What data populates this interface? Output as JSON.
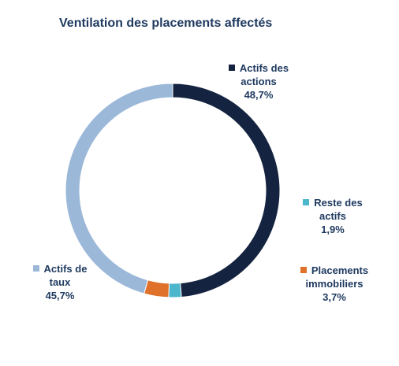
{
  "chart_data": {
    "type": "pie",
    "title": "Ventilation des placements affectés",
    "categories": [
      "Actifs des actions",
      "Reste des actifs",
      "Placements immobiliers",
      "Actifs de taux"
    ],
    "values": [
      48.7,
      1.9,
      3.7,
      45.7
    ],
    "value_labels": [
      "48,7%",
      "1,9%",
      "3,7%",
      "45,7%"
    ],
    "colors": [
      "#14233f",
      "#4bb6cc",
      "#e0712a",
      "#9bb8d9"
    ],
    "donut": true,
    "legend": "labels-around-ring"
  },
  "labels": [
    {
      "line1": "Actifs des",
      "line2": "actions",
      "pct": "48,7%"
    },
    {
      "line1": "Reste des",
      "line2": "actifs",
      "pct": "1,9%"
    },
    {
      "line1": "Placements",
      "line2": "immobiliers",
      "pct": "3,7%"
    },
    {
      "line1": "Actifs de",
      "line2": "taux",
      "pct": "45,7%"
    }
  ]
}
